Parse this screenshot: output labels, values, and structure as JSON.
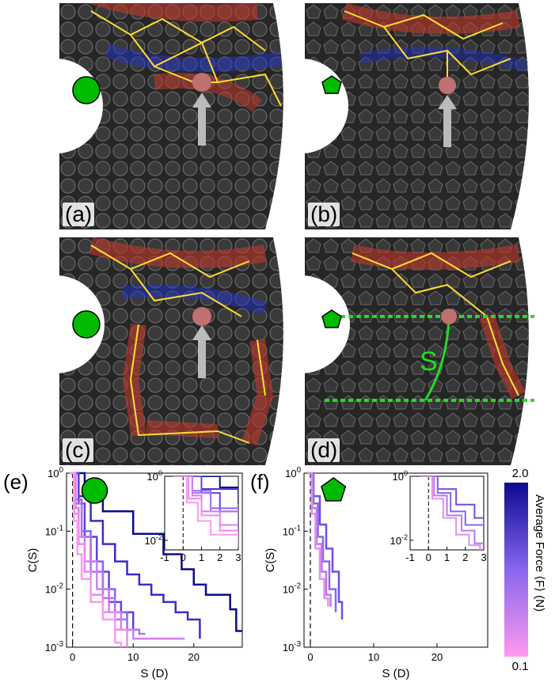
{
  "panels": {
    "a": {
      "label": "(a)",
      "particle": "disk"
    },
    "b": {
      "label": "(b)",
      "particle": "pentagon"
    },
    "c": {
      "label": "(c)",
      "particle": "disk"
    },
    "d": {
      "label": "(d)",
      "particle": "pentagon",
      "annotation": "S"
    }
  },
  "colors": {
    "particle_icon": "#00bb00",
    "force_network": "#ffdd33",
    "arrow": "#bbbbbb",
    "strong_chain": "#c0392b",
    "weak_chain": "#2233cc",
    "dashed_line": "#22dd22"
  },
  "colorbar": {
    "max_label": "2.0",
    "min_label": "0.1",
    "title": "Average Force ⟨F⟩ (N)",
    "color_high": "#0a0a90",
    "color_mid": "#8866ee",
    "color_low": "#ff99ee"
  },
  "chart_data": [
    {
      "type": "line",
      "panel_label": "(e)",
      "particle": "disk",
      "xlabel": "S (D)",
      "ylabel": "C(S)",
      "xlim": [
        -1,
        28
      ],
      "ylim": [
        0.001,
        1
      ],
      "yscale": "log",
      "xticks": [
        "0",
        "10",
        "20"
      ],
      "yticks": [
        "10^0",
        "10^-1",
        "10^-2",
        "10^-3"
      ],
      "vline_x": 0,
      "series": [
        {
          "force": 2.0,
          "color": "#0a0a90",
          "x": [
            -0.5,
            2,
            5,
            10,
            15,
            18,
            20,
            22,
            24,
            26,
            27,
            28
          ],
          "y": [
            1,
            0.45,
            0.22,
            0.09,
            0.04,
            0.022,
            0.012,
            0.008,
            0.008,
            0.0045,
            0.0019,
            0.0019
          ]
        },
        {
          "force": 1.6,
          "color": "#3a2acc",
          "x": [
            -0.5,
            1,
            3,
            5,
            7,
            9,
            11,
            13,
            15,
            17,
            19,
            21
          ],
          "y": [
            1,
            0.4,
            0.15,
            0.06,
            0.03,
            0.018,
            0.012,
            0.008,
            0.006,
            0.004,
            0.003,
            0.0014
          ]
        },
        {
          "force": 1.3,
          "color": "#5a44e0",
          "x": [
            -0.5,
            1,
            2,
            4,
            6,
            8,
            10
          ],
          "y": [
            1,
            0.3,
            0.08,
            0.02,
            0.006,
            0.004,
            0.0014
          ]
        },
        {
          "force": 1.0,
          "color": "#8866ee",
          "x": [
            -0.5,
            0.5,
            1.5,
            3,
            5,
            7,
            9
          ],
          "y": [
            1,
            0.35,
            0.1,
            0.03,
            0.01,
            0.004,
            0.002
          ]
        },
        {
          "force": 0.8,
          "color": "#b070f0",
          "x": [
            -0.5,
            0.5,
            1.5,
            3,
            5,
            7,
            9,
            11,
            12
          ],
          "y": [
            1,
            0.3,
            0.08,
            0.02,
            0.007,
            0.003,
            0.002,
            0.0017,
            0.0017
          ]
        },
        {
          "force": 0.6,
          "color": "#d080ee",
          "x": [
            -0.5,
            0.5,
            1,
            2,
            4,
            6,
            8,
            10,
            14,
            18.5
          ],
          "y": [
            1,
            0.25,
            0.08,
            0.03,
            0.01,
            0.004,
            0.002,
            0.0014,
            0.0014,
            0.0014
          ]
        },
        {
          "force": 0.4,
          "color": "#ee88ee",
          "x": [
            -0.5,
            0.3,
            1,
            2,
            3,
            5,
            7,
            9
          ],
          "y": [
            1,
            0.2,
            0.06,
            0.02,
            0.008,
            0.004,
            0.002,
            0.001
          ]
        },
        {
          "force": 0.2,
          "color": "#ff99ee",
          "x": [
            -0.5,
            0.2,
            0.8,
            1.5,
            3,
            5,
            7,
            8
          ],
          "y": [
            1,
            0.15,
            0.04,
            0.015,
            0.006,
            0.003,
            0.0012,
            0.001
          ]
        }
      ],
      "inset": {
        "xlim": [
          -1,
          3
        ],
        "ylim": [
          0.005,
          1
        ],
        "xticks": [
          "-1",
          "0",
          "1",
          "2",
          "3"
        ],
        "yticks": [
          "10^0",
          "10^-2"
        ],
        "series_source": "same"
      }
    },
    {
      "type": "line",
      "panel_label": "(f)",
      "particle": "pentagon",
      "xlabel": "S (D)",
      "ylabel": "C(S)",
      "xlim": [
        -1,
        28
      ],
      "ylim": [
        0.001,
        1
      ],
      "yscale": "log",
      "xticks": [
        "0",
        "10",
        "20"
      ],
      "yticks": [
        "10^0",
        "10^-1",
        "10^-2",
        "10^-3"
      ],
      "vline_x": 0,
      "series": [
        {
          "force": 1.4,
          "color": "#6a50e6",
          "x": [
            -0.5,
            0.5,
            1.5,
            2.5,
            3.5,
            4.5,
            5
          ],
          "y": [
            1,
            0.4,
            0.13,
            0.05,
            0.02,
            0.006,
            0.003
          ]
        },
        {
          "force": 1.1,
          "color": "#8866ee",
          "x": [
            -0.5,
            0.5,
            1.2,
            2,
            3,
            4
          ],
          "y": [
            1,
            0.3,
            0.08,
            0.03,
            0.01,
            0.004
          ]
        },
        {
          "force": 0.8,
          "color": "#b878ee",
          "x": [
            -0.5,
            0.3,
            1,
            1.8,
            2.5,
            3.2
          ],
          "y": [
            1,
            0.25,
            0.06,
            0.02,
            0.008,
            0.005
          ]
        },
        {
          "force": 0.5,
          "color": "#e090ee",
          "x": [
            -0.5,
            0.2,
            0.8,
            1.5,
            2.2,
            2.8
          ],
          "y": [
            1,
            0.2,
            0.05,
            0.015,
            0.007,
            0.005
          ]
        }
      ],
      "inset": {
        "xlim": [
          -1,
          3
        ],
        "ylim": [
          0.005,
          1
        ],
        "xticks": [
          "-1",
          "0",
          "1",
          "2",
          "3"
        ],
        "yticks": [
          "10^0",
          "10^-2"
        ],
        "series_source": "same"
      }
    }
  ]
}
